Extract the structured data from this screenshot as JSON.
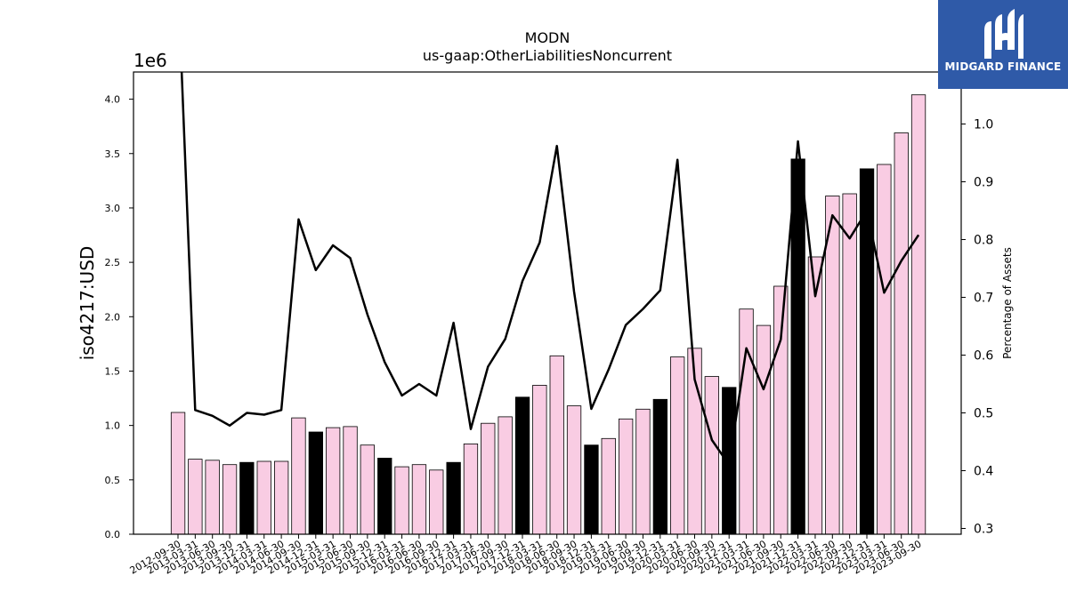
{
  "brand": {
    "name": "MIDGARD FINANCE",
    "logo_icon": "midgard-logo-icon"
  },
  "chart_data": {
    "type": "bar",
    "title": "MODN",
    "subtitle": "us-gaap:OtherLiabilitiesNoncurrent",
    "ylabel": "iso4217:USD",
    "y2label": "Percentage of Assets",
    "y_offset_label": "1e6",
    "ylim": [
      0,
      4250000
    ],
    "y2lim": [
      0.29,
      1.09
    ],
    "yticks": [
      "0.0",
      "0.5",
      "1.0",
      "1.5",
      "2.0",
      "2.5",
      "3.0",
      "3.5",
      "4.0"
    ],
    "y2ticks": [
      "0.3",
      "0.4",
      "0.5",
      "0.6",
      "0.7",
      "0.8",
      "0.9",
      "1.0"
    ],
    "colors": {
      "bar_default": "#f9cce3",
      "bar_highlight": "#000000",
      "line": "#000000"
    },
    "categories": [
      "2012-09-30",
      "2013-03-31",
      "2013-06-30",
      "2013-09-30",
      "2013-12-31",
      "2014-03-31",
      "2014-06-30",
      "2014-09-30",
      "2014-12-31",
      "2015-03-31",
      "2015-06-30",
      "2015-09-30",
      "2015-12-31",
      "2016-03-31",
      "2016-06-30",
      "2016-09-30",
      "2016-12-31",
      "2017-03-31",
      "2017-06-30",
      "2017-09-30",
      "2017-12-31",
      "2018-03-31",
      "2018-06-30",
      "2018-09-30",
      "2018-12-31",
      "2019-03-31",
      "2019-06-30",
      "2019-09-30",
      "2019-12-31",
      "2020-03-31",
      "2020-06-30",
      "2020-09-30",
      "2020-12-31",
      "2021-03-31",
      "2021-06-30",
      "2021-09-30",
      "2021-12-31",
      "2022-03-31",
      "2022-06-30",
      "2022-09-30",
      "2022-12-31",
      "2023-03-31",
      "2023-06-30",
      "2023-09-30"
    ],
    "series": [
      {
        "type": "bar",
        "values": [
          1120000,
          690000,
          680000,
          640000,
          660000,
          670000,
          670000,
          1070000,
          940000,
          980000,
          990000,
          820000,
          700000,
          620000,
          640000,
          590000,
          660000,
          830000,
          1020000,
          1080000,
          1260000,
          1370000,
          1640000,
          1180000,
          820000,
          880000,
          1060000,
          1150000,
          1240000,
          1630000,
          1710000,
          1450000,
          1350000,
          2070000,
          1920000,
          2280000,
          3450000,
          2550000,
          3110000,
          3130000,
          3360000,
          3400000,
          3690000,
          4040000
        ],
        "highlight": [
          false,
          false,
          false,
          false,
          true,
          false,
          false,
          false,
          true,
          false,
          false,
          false,
          true,
          false,
          false,
          false,
          true,
          false,
          false,
          false,
          true,
          false,
          false,
          false,
          true,
          false,
          false,
          false,
          true,
          false,
          false,
          false,
          true,
          false,
          false,
          false,
          true,
          false,
          false,
          false,
          true,
          false,
          false,
          false
        ]
      },
      {
        "type": "line",
        "axis": "right",
        "values": [
          1.25,
          0.505,
          0.495,
          0.478,
          0.5,
          0.497,
          0.505,
          0.835,
          0.747,
          0.79,
          0.768,
          0.67,
          0.588,
          0.53,
          0.55,
          0.53,
          0.656,
          0.472,
          0.58,
          0.628,
          0.728,
          0.795,
          0.962,
          0.71,
          0.507,
          0.575,
          0.652,
          0.68,
          0.712,
          0.938,
          0.558,
          0.453,
          0.41,
          0.612,
          0.541,
          0.627,
          0.97,
          0.702,
          0.842,
          0.802,
          0.85,
          0.708,
          0.763,
          0.808
        ]
      }
    ]
  }
}
